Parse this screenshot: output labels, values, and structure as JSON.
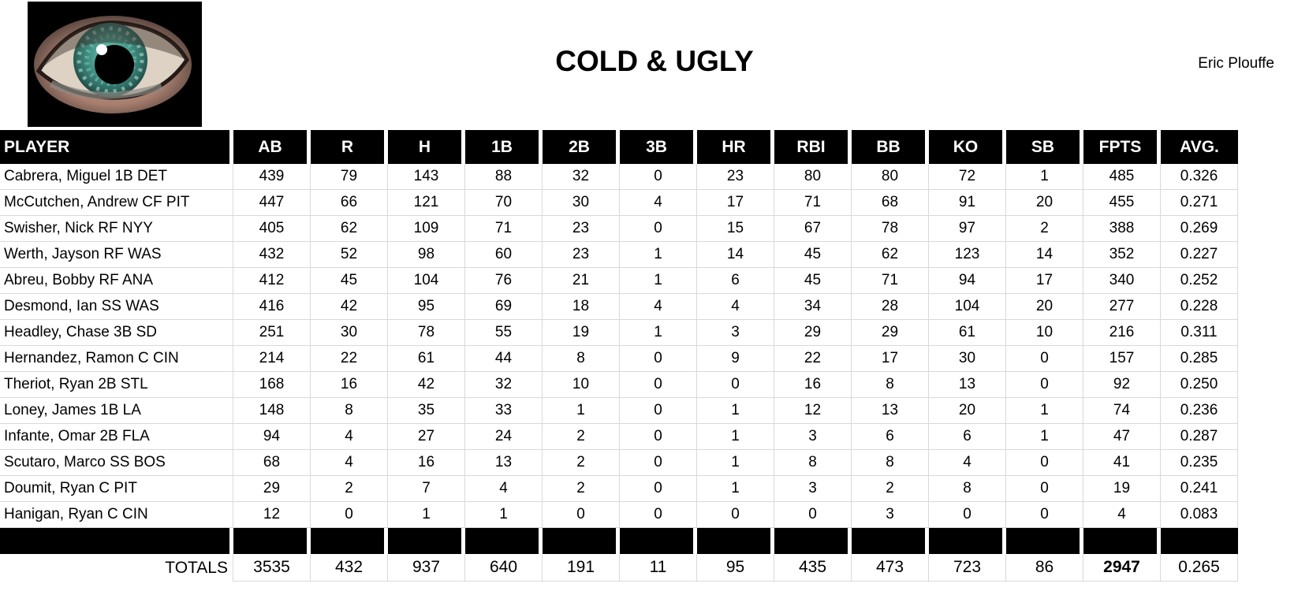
{
  "header": {
    "title": "COLD & UGLY",
    "author": "Eric Plouffe",
    "logo_icon": "eye-logo"
  },
  "colors": {
    "header_bg": "#000000",
    "header_text": "#ffffff",
    "gridline": "#d9d9d9",
    "iris_teal": "#4fa396",
    "skin_tone": "#a87f6f"
  },
  "table": {
    "columns": [
      "PLAYER",
      "AB",
      "R",
      "H",
      "1B",
      "2B",
      "3B",
      "HR",
      "RBI",
      "BB",
      "KO",
      "SB",
      "FPTS",
      "AVG."
    ],
    "rows": [
      {
        "player": "Cabrera, Miguel 1B DET",
        "stats": [
          "439",
          "79",
          "143",
          "88",
          "32",
          "0",
          "23",
          "80",
          "80",
          "72",
          "1",
          "485",
          "0.326"
        ]
      },
      {
        "player": "McCutchen, Andrew CF PIT",
        "stats": [
          "447",
          "66",
          "121",
          "70",
          "30",
          "4",
          "17",
          "71",
          "68",
          "91",
          "20",
          "455",
          "0.271"
        ]
      },
      {
        "player": "Swisher, Nick RF NYY",
        "stats": [
          "405",
          "62",
          "109",
          "71",
          "23",
          "0",
          "15",
          "67",
          "78",
          "97",
          "2",
          "388",
          "0.269"
        ]
      },
      {
        "player": "Werth, Jayson RF WAS",
        "stats": [
          "432",
          "52",
          "98",
          "60",
          "23",
          "1",
          "14",
          "45",
          "62",
          "123",
          "14",
          "352",
          "0.227"
        ]
      },
      {
        "player": "Abreu, Bobby RF ANA",
        "stats": [
          "412",
          "45",
          "104",
          "76",
          "21",
          "1",
          "6",
          "45",
          "71",
          "94",
          "17",
          "340",
          "0.252"
        ]
      },
      {
        "player": "Desmond, Ian SS WAS",
        "stats": [
          "416",
          "42",
          "95",
          "69",
          "18",
          "4",
          "4",
          "34",
          "28",
          "104",
          "20",
          "277",
          "0.228"
        ]
      },
      {
        "player": "Headley, Chase 3B SD",
        "stats": [
          "251",
          "30",
          "78",
          "55",
          "19",
          "1",
          "3",
          "29",
          "29",
          "61",
          "10",
          "216",
          "0.311"
        ]
      },
      {
        "player": "Hernandez, Ramon C CIN",
        "stats": [
          "214",
          "22",
          "61",
          "44",
          "8",
          "0",
          "9",
          "22",
          "17",
          "30",
          "0",
          "157",
          "0.285"
        ]
      },
      {
        "player": "Theriot, Ryan 2B STL",
        "stats": [
          "168",
          "16",
          "42",
          "32",
          "10",
          "0",
          "0",
          "16",
          "8",
          "13",
          "0",
          "92",
          "0.250"
        ]
      },
      {
        "player": "Loney, James 1B LA",
        "stats": [
          "148",
          "8",
          "35",
          "33",
          "1",
          "0",
          "1",
          "12",
          "13",
          "20",
          "1",
          "74",
          "0.236"
        ]
      },
      {
        "player": "Infante, Omar 2B FLA",
        "stats": [
          "94",
          "4",
          "27",
          "24",
          "2",
          "0",
          "1",
          "3",
          "6",
          "6",
          "1",
          "47",
          "0.287"
        ]
      },
      {
        "player": "Scutaro, Marco SS BOS",
        "stats": [
          "68",
          "4",
          "16",
          "13",
          "2",
          "0",
          "1",
          "8",
          "8",
          "4",
          "0",
          "41",
          "0.235"
        ]
      },
      {
        "player": "Doumit, Ryan C PIT",
        "stats": [
          "29",
          "2",
          "7",
          "4",
          "2",
          "0",
          "1",
          "3",
          "2",
          "8",
          "0",
          "19",
          "0.241"
        ]
      },
      {
        "player": "Hanigan, Ryan C CIN",
        "stats": [
          "12",
          "0",
          "1",
          "1",
          "0",
          "0",
          "0",
          "0",
          "3",
          "0",
          "0",
          "4",
          "0.083"
        ]
      }
    ],
    "totals_label": "TOTALS",
    "totals": [
      "3535",
      "432",
      "937",
      "640",
      "191",
      "11",
      "95",
      "435",
      "473",
      "723",
      "86",
      "2947",
      "0.265"
    ],
    "totals_bold_column": "FPTS"
  }
}
